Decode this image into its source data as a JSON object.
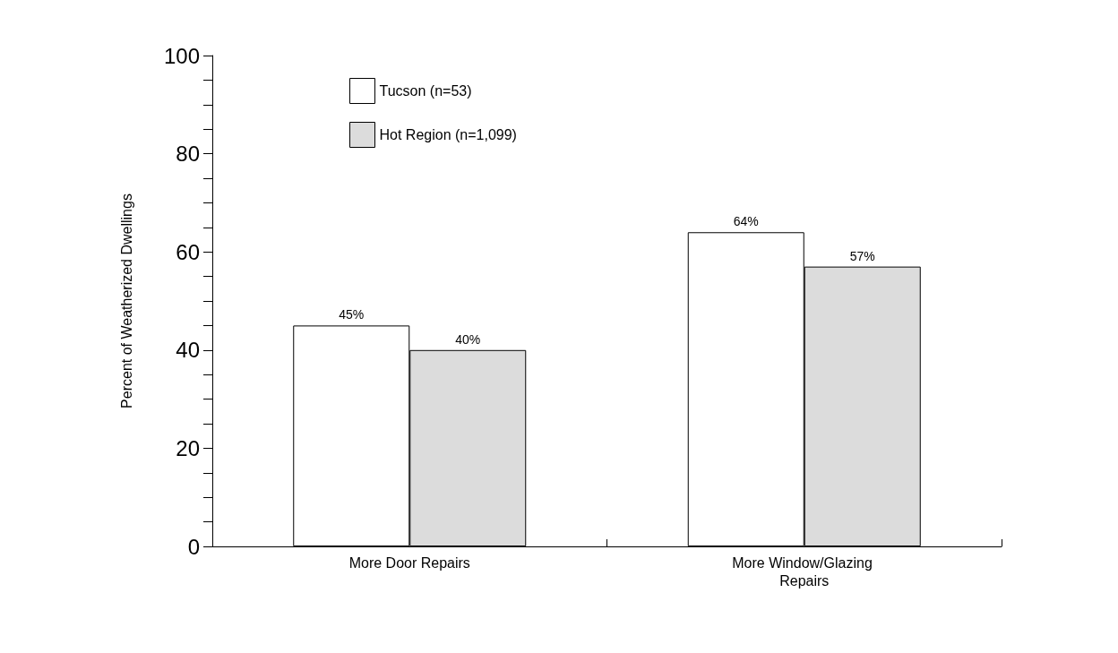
{
  "chart_data": {
    "type": "bar",
    "ylabel": "Percent of Weatherized Dwellings",
    "categories": [
      "More Door Repairs",
      "More Window/Glazing Repairs"
    ],
    "series": [
      {
        "name": "Tucson (n=53)",
        "color": "#ffffff",
        "values": [
          45,
          64
        ],
        "value_labels": [
          "45%",
          "64%"
        ]
      },
      {
        "name": "Hot Region (n=1,099)",
        "color": "#dcdcdc",
        "values": [
          40,
          57
        ],
        "value_labels": [
          "40%",
          "57%"
        ]
      }
    ],
    "ylim": [
      0,
      100
    ],
    "yticks": [
      0,
      {
        "value": 5,
        "label": null
      },
      {
        "value": 10,
        "label": null
      },
      {
        "value": 15,
        "label": null
      },
      20,
      {
        "value": 25,
        "label": null
      },
      {
        "value": 30,
        "label": null
      },
      {
        "value": 35,
        "label": null
      },
      40,
      {
        "value": 45,
        "label": null
      },
      {
        "value": 50,
        "label": null
      },
      {
        "value": 55,
        "label": null
      },
      60,
      {
        "value": 65,
        "label": null
      },
      {
        "value": 70,
        "label": null
      },
      {
        "value": 75,
        "label": null
      },
      80,
      {
        "value": 85,
        "label": null
      },
      {
        "value": 90,
        "label": null
      },
      {
        "value": 95,
        "label": null
      },
      100
    ],
    "grid": false,
    "legend": "top left"
  }
}
